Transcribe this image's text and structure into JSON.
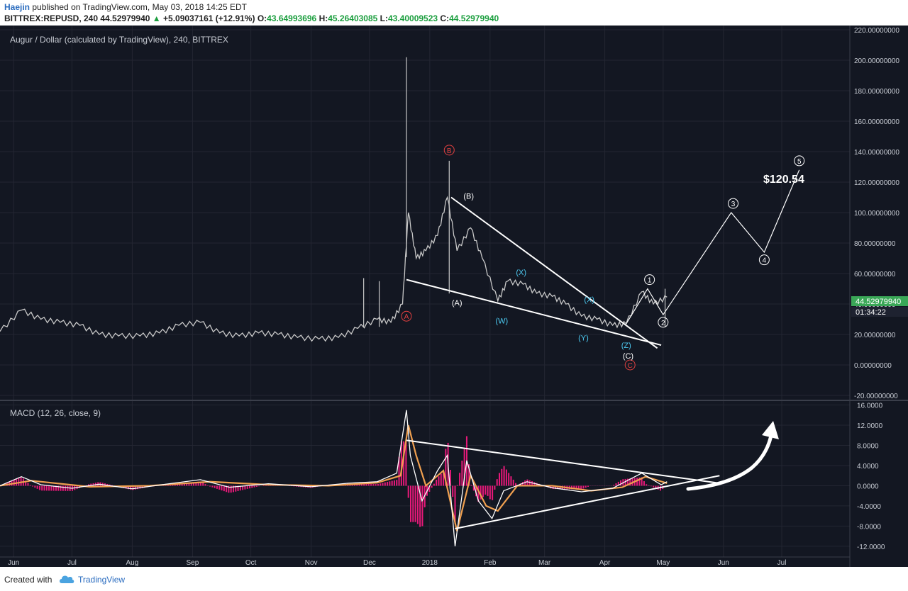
{
  "header": {
    "author": "Haejin",
    "published_text": "published on TradingView.com, May 03, 2018 14:25 EDT",
    "symbol_line": "BITTREX:REPUSD, 240 44.52979940",
    "change_arrow": "▲",
    "change": "+5.09037161 (+12.91%)",
    "ohlc": [
      {
        "label": "O:",
        "value": "43.64993696"
      },
      {
        "label": "H:",
        "value": "45.26403085"
      },
      {
        "label": "L:",
        "value": "43.40009523"
      },
      {
        "label": "C:",
        "value": "44.52979940"
      }
    ]
  },
  "footer": {
    "created_with": "Created with",
    "brand": "TradingView",
    "brand_icon": "tradingview-cloud-icon"
  },
  "colors": {
    "background": "#131722",
    "grid": "#232632",
    "text": "#c8ccd4",
    "candle_up": "#c8c8c8",
    "price_label_bg": "#3aa757",
    "macd_line": "#ffffff",
    "signal_line": "#f0a050",
    "histogram": "#e8197a",
    "wave_red": "#e04040",
    "wave_white": "#ffffff",
    "wave_cyan": "#4cc9f0"
  },
  "chart_data": [
    {
      "type": "line",
      "title": "Augur / Dollar (calculated by TradingView), 240, BITTREX",
      "ylim": [
        -20,
        220
      ],
      "y_ticks": [
        "220.00000000",
        "200.00000000",
        "180.00000000",
        "160.00000000",
        "140.00000000",
        "120.00000000",
        "100.00000000",
        "80.00000000",
        "60.00000000",
        "40.00000000",
        "20.00000000",
        "0.00000000",
        "-20.00000000"
      ],
      "y_tick_values": [
        220,
        200,
        180,
        160,
        140,
        120,
        100,
        80,
        60,
        40,
        20,
        0,
        -20
      ],
      "x_ticks": [
        "Jun",
        "Jul",
        "Aug",
        "Sep",
        "Oct",
        "Nov",
        "Dec",
        "2018",
        "Feb",
        "Mar",
        "Apr",
        "May",
        "Jun",
        "Jul"
      ],
      "current_price": "44.52979940",
      "countdown": "01:34:22",
      "price_series": [
        [
          "2017-05-25",
          22
        ],
        [
          "2017-06-05",
          36
        ],
        [
          "2017-06-15",
          30
        ],
        [
          "2017-06-25",
          28
        ],
        [
          "2017-07-05",
          26
        ],
        [
          "2017-07-15",
          20
        ],
        [
          "2017-07-25",
          19
        ],
        [
          "2017-08-05",
          19
        ],
        [
          "2017-08-15",
          21
        ],
        [
          "2017-08-25",
          26
        ],
        [
          "2017-09-05",
          28
        ],
        [
          "2017-09-15",
          21
        ],
        [
          "2017-09-25",
          19
        ],
        [
          "2017-10-05",
          21
        ],
        [
          "2017-10-15",
          20
        ],
        [
          "2017-10-25",
          18
        ],
        [
          "2017-11-05",
          17
        ],
        [
          "2017-11-15",
          18
        ],
        [
          "2017-11-25",
          24
        ],
        [
          "2017-12-05",
          30
        ],
        [
          "2017-12-12",
          28
        ],
        [
          "2017-12-18",
          40
        ],
        [
          "2017-12-21",
          100
        ],
        [
          "2017-12-25",
          70
        ],
        [
          "2017-12-30",
          75
        ],
        [
          "2018-01-05",
          85
        ],
        [
          "2018-01-10",
          110
        ],
        [
          "2018-01-15",
          75
        ],
        [
          "2018-01-22",
          90
        ],
        [
          "2018-01-28",
          70
        ],
        [
          "2018-02-05",
          42
        ],
        [
          "2018-02-10",
          55
        ],
        [
          "2018-02-18",
          53
        ],
        [
          "2018-02-25",
          47
        ],
        [
          "2018-03-05",
          45
        ],
        [
          "2018-03-12",
          40
        ],
        [
          "2018-03-20",
          32
        ],
        [
          "2018-03-28",
          30
        ],
        [
          "2018-04-05",
          26
        ],
        [
          "2018-04-12",
          27
        ],
        [
          "2018-04-20",
          48
        ],
        [
          "2018-04-26",
          40
        ],
        [
          "2018-05-03",
          44.53
        ]
      ],
      "spikes": [
        {
          "x": "2017-11-28",
          "high": 57
        },
        {
          "x": "2017-12-06",
          "high": 55
        },
        {
          "x": "2017-12-20",
          "high": 202
        },
        {
          "x": "2018-01-11",
          "high": 134
        },
        {
          "x": "2018-05-02",
          "high": 50
        }
      ],
      "forecast_path": [
        [
          "2018-04-12",
          27
        ],
        [
          "2018-04-23",
          50
        ],
        [
          "2018-05-01",
          33
        ],
        [
          "2018-06-05",
          100
        ],
        [
          "2018-06-22",
          74
        ],
        [
          "2018-07-10",
          128
        ]
      ],
      "trendlines": [
        [
          [
            "2017-12-20",
            56
          ],
          [
            "2018-04-30",
            13
          ]
        ],
        [
          [
            "2018-01-12",
            110
          ],
          [
            "2018-04-28",
            11
          ]
        ]
      ],
      "annotations": [
        {
          "text": "A",
          "style": "circle-red",
          "x": "2017-12-20",
          "y": 32
        },
        {
          "text": "B",
          "style": "circle-red",
          "x": "2018-01-11",
          "y": 141
        },
        {
          "text": "C",
          "style": "circle-red",
          "x": "2018-04-14",
          "y": 0
        },
        {
          "text": "(A)",
          "style": "white",
          "x": "2018-01-15",
          "y": 41
        },
        {
          "text": "(B)",
          "style": "white",
          "x": "2018-01-21",
          "y": 111
        },
        {
          "text": "(C)",
          "style": "white",
          "x": "2018-04-13",
          "y": 6
        },
        {
          "text": "(W)",
          "style": "cyan",
          "x": "2018-02-07",
          "y": 29
        },
        {
          "text": "(X)",
          "style": "cyan",
          "x": "2018-02-17",
          "y": 61
        },
        {
          "text": "(X)",
          "style": "cyan",
          "x": "2018-03-24",
          "y": 43
        },
        {
          "text": "(Y)",
          "style": "cyan",
          "x": "2018-03-21",
          "y": 18
        },
        {
          "text": "(Z)",
          "style": "cyan",
          "x": "2018-04-12",
          "y": 13
        },
        {
          "text": "1",
          "style": "circle-white",
          "x": "2018-04-24",
          "y": 56
        },
        {
          "text": "2",
          "style": "circle-white",
          "x": "2018-05-01",
          "y": 28
        },
        {
          "text": "3",
          "style": "circle-white",
          "x": "2018-06-06",
          "y": 106
        },
        {
          "text": "4",
          "style": "circle-white",
          "x": "2018-06-22",
          "y": 69
        },
        {
          "text": "5",
          "style": "circle-white",
          "x": "2018-07-10",
          "y": 134
        }
      ],
      "price_target_label": "$120.54"
    },
    {
      "type": "line",
      "title": "MACD (12, 26, close, 9)",
      "ylim": [
        -13,
        16.5
      ],
      "y_ticks": [
        "16.0000",
        "12.0000",
        "8.0000",
        "4.0000",
        "0.0000",
        "-4.0000",
        "-8.0000",
        "-12.0000"
      ],
      "y_tick_values": [
        16,
        12,
        8,
        4,
        0,
        -4,
        -8,
        -12
      ],
      "series": [
        {
          "values": [
            [
              "2017-05-25",
              0
            ],
            [
              "2017-06-05",
              1.8
            ],
            [
              "2017-06-15",
              0.2
            ],
            [
              "2017-07-01",
              -0.5
            ],
            [
              "2017-07-15",
              0.3
            ],
            [
              "2017-08-01",
              -0.6
            ],
            [
              "2017-08-20",
              0.4
            ],
            [
              "2017-09-05",
              1.2
            ],
            [
              "2017-09-20",
              -0.3
            ],
            [
              "2017-10-10",
              0.4
            ],
            [
              "2017-11-01",
              -0.2
            ],
            [
              "2017-11-20",
              0.5
            ],
            [
              "2017-12-05",
              0.8
            ],
            [
              "2017-12-15",
              2.5
            ],
            [
              "2017-12-20",
              15
            ],
            [
              "2017-12-22",
              6
            ],
            [
              "2017-12-28",
              -3
            ],
            [
              "2018-01-05",
              3
            ],
            [
              "2018-01-10",
              6
            ],
            [
              "2018-01-14",
              -12
            ],
            [
              "2018-01-20",
              5
            ],
            [
              "2018-01-26",
              -3
            ],
            [
              "2018-02-02",
              -6.5
            ],
            [
              "2018-02-08",
              -1
            ],
            [
              "2018-02-20",
              0.8
            ],
            [
              "2018-03-05",
              -0.4
            ],
            [
              "2018-03-20",
              -1.2
            ],
            [
              "2018-04-05",
              -0.5
            ],
            [
              "2018-04-20",
              2.5
            ],
            [
              "2018-04-30",
              0.2
            ],
            [
              "2018-05-03",
              0.8
            ]
          ]
        },
        {
          "values": [
            [
              "2017-05-25",
              0
            ],
            [
              "2017-06-10",
              1.0
            ],
            [
              "2017-07-10",
              -0.2
            ],
            [
              "2017-08-10",
              0
            ],
            [
              "2017-09-10",
              0.8
            ],
            [
              "2017-10-10",
              0.2
            ],
            [
              "2017-11-10",
              0
            ],
            [
              "2017-12-05",
              0.6
            ],
            [
              "2017-12-17",
              2
            ],
            [
              "2017-12-21",
              12
            ],
            [
              "2017-12-25",
              6
            ],
            [
              "2017-12-30",
              0
            ],
            [
              "2018-01-08",
              3
            ],
            [
              "2018-01-15",
              -9
            ],
            [
              "2018-01-22",
              2
            ],
            [
              "2018-01-30",
              -4
            ],
            [
              "2018-02-05",
              -5
            ],
            [
              "2018-02-15",
              0
            ],
            [
              "2018-03-05",
              0
            ],
            [
              "2018-03-25",
              -1
            ],
            [
              "2018-04-10",
              -0.3
            ],
            [
              "2018-04-22",
              1.8
            ],
            [
              "2018-05-03",
              0.5
            ]
          ]
        }
      ],
      "trendlines": [
        [
          [
            "2017-12-20",
            9
          ],
          [
            "2018-05-30",
            0.5
          ]
        ],
        [
          [
            "2018-01-14",
            -8.5
          ],
          [
            "2018-05-30",
            2.0
          ]
        ]
      ]
    }
  ]
}
